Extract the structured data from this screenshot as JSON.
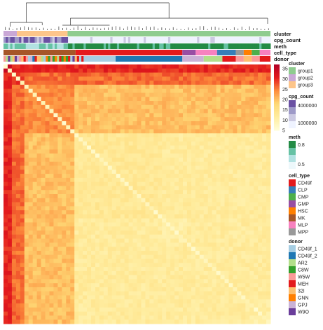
{
  "chart_data": {
    "type": "heatmap",
    "description_labels": {
      "annotation_rows": [
        "cluster",
        "cpg_count",
        "meth",
        "cell_type",
        "donor"
      ]
    },
    "colorbar": {
      "ticks": [
        5,
        10,
        15,
        20,
        25,
        30,
        35
      ],
      "ticks_text": [
        "5",
        "10",
        "15",
        "20",
        "25",
        "30",
        "35"
      ],
      "range": [
        5,
        37
      ],
      "colors": [
        "#fffed9",
        "#ffeda0",
        "#fed976",
        "#fd8d3c",
        "#e31a1c",
        "#b10026"
      ]
    },
    "column_groups": {
      "order": [
        "group2",
        "group3",
        "group1"
      ],
      "fractions": [
        0.05,
        0.19,
        0.76
      ]
    },
    "diagonal_blocks": [
      {
        "start": 0.0,
        "end": 0.03,
        "level": 33
      },
      {
        "start": 0.03,
        "end": 0.08,
        "level": 29
      },
      {
        "start": 0.08,
        "end": 0.26,
        "level": 24
      },
      {
        "start": 0.26,
        "end": 0.6,
        "level": 13
      },
      {
        "start": 0.6,
        "end": 0.69,
        "level": 11
      },
      {
        "start": 0.69,
        "end": 0.79,
        "level": 12
      },
      {
        "start": 0.79,
        "end": 0.9,
        "level": 12
      },
      {
        "start": 0.9,
        "end": 1.0,
        "level": 11
      }
    ],
    "cell_type_segments": [
      {
        "type": "MK",
        "start": 0.0,
        "end": 0.27
      },
      {
        "type": "CD49f",
        "start": 0.27,
        "end": 0.67
      },
      {
        "type": "GMP",
        "start": 0.67,
        "end": 0.72
      },
      {
        "type": "MLP",
        "start": 0.72,
        "end": 0.8
      },
      {
        "type": "CLP",
        "start": 0.8,
        "end": 0.87
      },
      {
        "type": "MPP",
        "start": 0.87,
        "end": 0.9
      },
      {
        "type": "HSC",
        "start": 0.9,
        "end": 0.93
      },
      {
        "type": "CMP",
        "start": 0.93,
        "end": 0.96
      },
      {
        "type": "MLP",
        "start": 0.96,
        "end": 1.0
      }
    ],
    "donor_segments": [
      {
        "donor": "mixed",
        "start": 0.0,
        "end": 0.3
      },
      {
        "donor": "CD49f_1",
        "start": 0.3,
        "end": 0.42
      },
      {
        "donor": "CD49f_2",
        "start": 0.42,
        "end": 0.67
      },
      {
        "donor": "GPJ",
        "start": 0.67,
        "end": 0.75
      },
      {
        "donor": "AR2",
        "start": 0.75,
        "end": 0.82
      },
      {
        "donor": "MEH",
        "start": 0.82,
        "end": 0.87
      },
      {
        "donor": "W5W",
        "start": 0.87,
        "end": 0.9
      },
      {
        "donor": "32I",
        "start": 0.9,
        "end": 0.93
      },
      {
        "donor": "W5W",
        "start": 0.93,
        "end": 0.96
      },
      {
        "donor": "MEH",
        "start": 0.96,
        "end": 1.0
      }
    ]
  },
  "legends": {
    "cluster": {
      "title": "cluster",
      "items": [
        {
          "label": "group1",
          "color": "#8fcc8f"
        },
        {
          "label": "group2",
          "color": "#c9a8d6"
        },
        {
          "label": "group3",
          "color": "#fdc58a"
        }
      ]
    },
    "cpg_count": {
      "title": "cpg_count",
      "labels": [
        "4000000",
        "1000000"
      ],
      "colors": [
        "#6a51a3",
        "#9e9ac8",
        "#cbc9e2",
        "#eff3ff"
      ]
    },
    "meth": {
      "title": "meth",
      "labels": [
        "0.8",
        "0.5"
      ],
      "colors": [
        "#238b45",
        "#66c2a4",
        "#b2e2e2",
        "#edf8fb"
      ]
    },
    "cell_type": {
      "title": "cell_type",
      "items": [
        {
          "label": "CD49f",
          "color": "#e41a1c"
        },
        {
          "label": "CLP",
          "color": "#377eb8"
        },
        {
          "label": "CMP",
          "color": "#4daf4a"
        },
        {
          "label": "GMP",
          "color": "#984ea3"
        },
        {
          "label": "HSC",
          "color": "#ff7f00"
        },
        {
          "label": "MK",
          "color": "#a65628"
        },
        {
          "label": "MLP",
          "color": "#f781bf"
        },
        {
          "label": "MPP",
          "color": "#999999"
        }
      ]
    },
    "donor": {
      "title": "donor",
      "items": [
        {
          "label": "CD49f_1",
          "color": "#a6cee3"
        },
        {
          "label": "CD49f_2",
          "color": "#1f78b4"
        },
        {
          "label": "AR2",
          "color": "#b2df8a"
        },
        {
          "label": "C8W",
          "color": "#33a02c"
        },
        {
          "label": "W5W",
          "color": "#fb9a99"
        },
        {
          "label": "MEH",
          "color": "#e31a1c"
        },
        {
          "label": "32I",
          "color": "#fdbf6f"
        },
        {
          "label": "GNN",
          "color": "#ff7f00"
        },
        {
          "label": "GPJ",
          "color": "#cab2d6"
        },
        {
          "label": "W9O",
          "color": "#6a3d9a"
        }
      ]
    }
  }
}
